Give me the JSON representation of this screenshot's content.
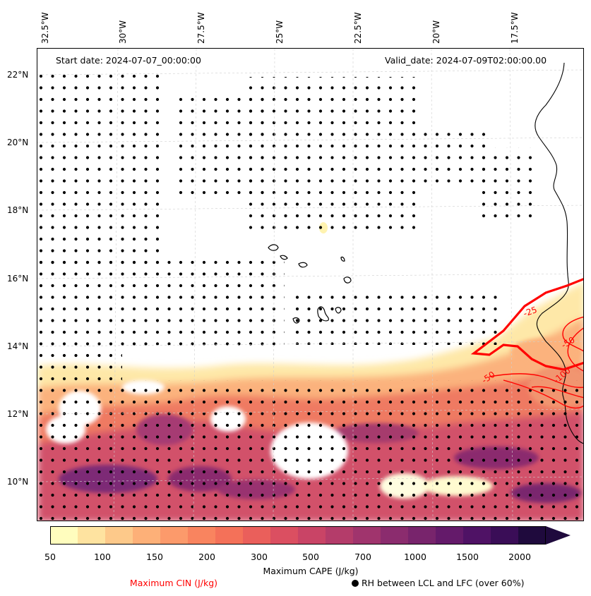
{
  "map": {
    "start_date": "Start date: 2024-07-07_00:00:00",
    "valid_date": "Valid_date: 2024-07-09T02:00:00.00",
    "lon_labels": [
      "32.5°W",
      "30°W",
      "27.5°W",
      "25°W",
      "22.5°W",
      "20°W",
      "17.5°W"
    ],
    "lat_labels": [
      "22°N",
      "20°N",
      "18°N",
      "16°N",
      "14°N",
      "12°N",
      "10°N"
    ],
    "cin_contour_labels": [
      "-25",
      "-50",
      "-50",
      "-100"
    ]
  },
  "colorbar": {
    "label": "Maximum CAPE (J/kg)",
    "ticks": [
      "50",
      "100",
      "150",
      "200",
      "300",
      "500",
      "700",
      "1000",
      "1500",
      "2000"
    ],
    "colors": [
      "#fffdbe",
      "#fee3a0",
      "#fdc98a",
      "#fdb078",
      "#fc9a6b",
      "#f9845f",
      "#f47159",
      "#ea5f5b",
      "#db4f61",
      "#c94466",
      "#b43c6a",
      "#a0346d",
      "#8b2c6e",
      "#78246c",
      "#641a6a",
      "#4f1265",
      "#3a0d57",
      "#1f0a3d"
    ],
    "extend_color": "#1f0a3d"
  },
  "legend": {
    "cin_label": "Maximum CIN (J/kg)",
    "cin_color": "#ff0000",
    "rh_label": "RH between LCL and LFC (over 60%)"
  }
}
